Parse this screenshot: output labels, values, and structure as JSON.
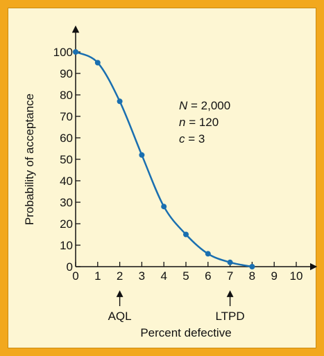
{
  "colors": {
    "outer_background": "#f2a81e",
    "panel_background": "#fdf6d3",
    "curve": "#1a6fb0",
    "axis": "#111111"
  },
  "chart_data": {
    "type": "line",
    "title": "",
    "xlabel": "Percent defective",
    "ylabel": "Probability of acceptance",
    "xlim": [
      0,
      10
    ],
    "ylim": [
      0,
      100
    ],
    "x_ticks": [
      "0",
      "1",
      "2",
      "3",
      "4",
      "5",
      "6",
      "7",
      "8",
      "9",
      "10"
    ],
    "y_ticks": [
      "0",
      "10",
      "20",
      "30",
      "40",
      "50",
      "60",
      "70",
      "80",
      "90",
      "100"
    ],
    "grid": false,
    "series": [
      {
        "x": [
          0,
          1,
          2,
          3,
          4,
          5,
          6,
          7,
          8
        ],
        "values": [
          100,
          95,
          77,
          52,
          28,
          15,
          6,
          2,
          0
        ]
      }
    ],
    "annotations": {
      "parameters": [
        {
          "italic": "N",
          "rest": " = 2,000"
        },
        {
          "italic": "n",
          "rest": " = 120"
        },
        {
          "italic": "c",
          "rest": " = 3"
        }
      ],
      "markers": [
        {
          "x": 2,
          "label": "AQL"
        },
        {
          "x": 7,
          "label": "LTPD"
        }
      ]
    }
  }
}
